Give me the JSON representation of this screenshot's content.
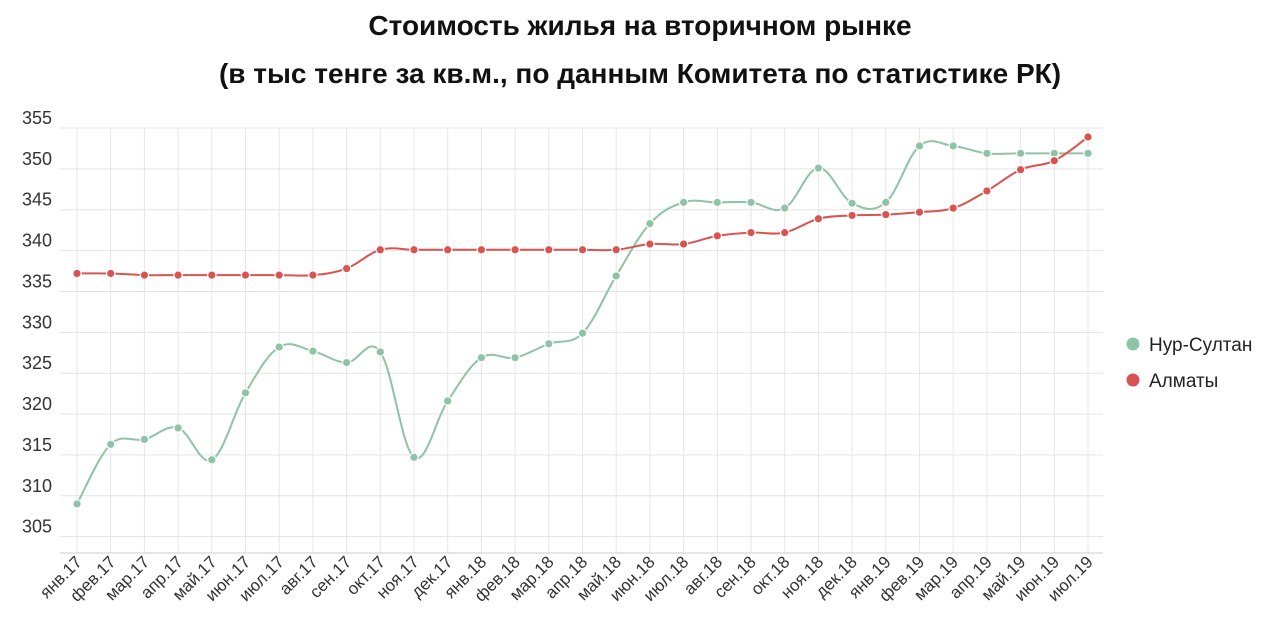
{
  "chart_data": {
    "type": "line",
    "title": "Стоимость жилья на вторичном рынке",
    "subtitle": "(в тыс тенге за кв.м., по данным Комитета по статистике РК)",
    "xlabel": "",
    "ylabel": "",
    "ylim": [
      303,
      355
    ],
    "y_ticks": [
      305,
      310,
      315,
      320,
      325,
      330,
      335,
      340,
      345,
      350,
      355
    ],
    "grid": true,
    "legend_position": "right",
    "categories": [
      "янв.17",
      "фев.17",
      "мар.17",
      "апр.17",
      "май.17",
      "июн.17",
      "июл.17",
      "авг.17",
      "сен.17",
      "окт.17",
      "ноя.17",
      "дек.17",
      "янв.18",
      "фев.18",
      "мар.18",
      "апр.18",
      "май.18",
      "июн.18",
      "июл.18",
      "авг.18",
      "сен.18",
      "окт.18",
      "ноя.18",
      "дек.18",
      "янв.19",
      "фев.19",
      "мар.19",
      "апр.19",
      "май.19",
      "июн.19",
      "июл.19"
    ],
    "series": [
      {
        "name": "Нур-Султан",
        "color": "#8ec3a5",
        "values": [
          309,
          316.3,
          316.9,
          318.3,
          314.4,
          322.6,
          328.2,
          327.7,
          326.3,
          327.6,
          314.7,
          321.6,
          326.9,
          326.9,
          328.6,
          329.9,
          336.9,
          343.3,
          345.9,
          345.9,
          345.9,
          345.2,
          350.1,
          345.8,
          345.9,
          352.8,
          352.8,
          351.9,
          351.9,
          351.9,
          351.9
        ]
      },
      {
        "name": "Алматы",
        "color": "#d9534f",
        "values": [
          337.2,
          337.2,
          337,
          337,
          337,
          337,
          337,
          337,
          337.8,
          340.1,
          340.1,
          340.1,
          340.1,
          340.1,
          340.1,
          340.1,
          340.1,
          340.8,
          340.8,
          341.8,
          342.2,
          342.2,
          343.9,
          344.3,
          344.4,
          344.7,
          345.2,
          347.3,
          349.9,
          351,
          353.9
        ]
      }
    ]
  }
}
